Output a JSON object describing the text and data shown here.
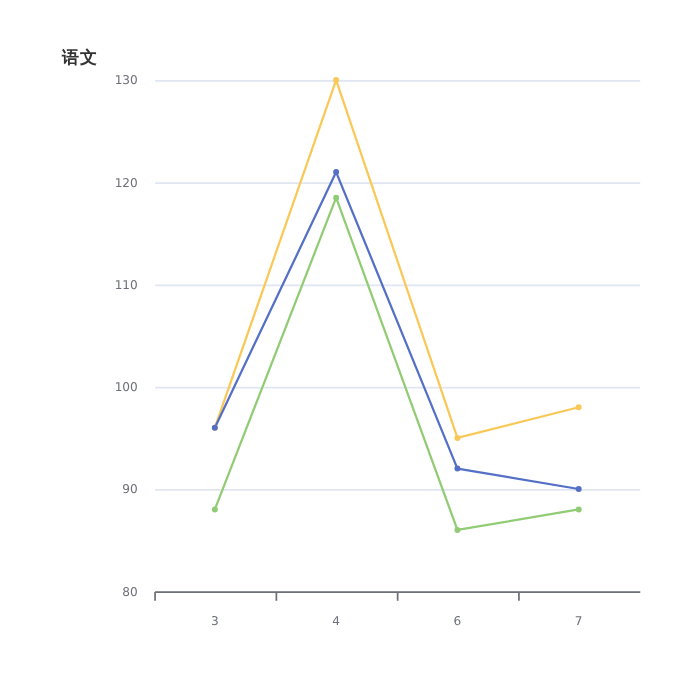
{
  "chart_data": {
    "type": "line",
    "title": "语文",
    "categories": [
      "3",
      "4",
      "6",
      "7"
    ],
    "series": [
      {
        "color": "#fac858",
        "values": [
          96,
          130,
          95,
          98
        ]
      },
      {
        "color": "#5470c6",
        "values": [
          96,
          121,
          92,
          90
        ]
      },
      {
        "color": "#91cc75",
        "values": [
          88,
          118.5,
          86,
          88
        ]
      }
    ],
    "ylim": [
      80,
      130
    ],
    "yticks": [
      80,
      90,
      100,
      110,
      120,
      130
    ],
    "grid": "y",
    "marker": "circle",
    "line_style": "solid"
  }
}
